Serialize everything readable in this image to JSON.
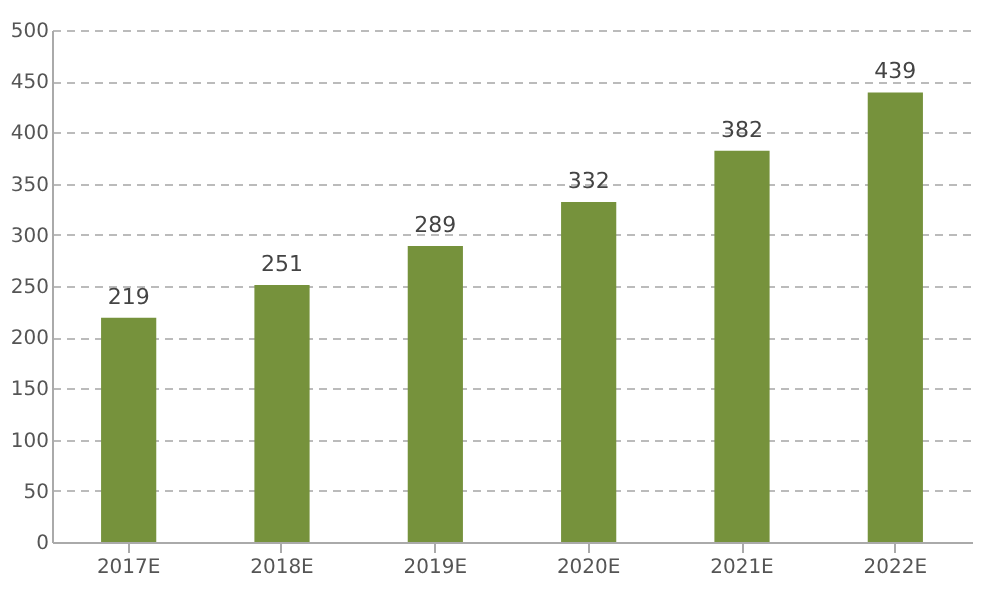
{
  "chart_data": {
    "type": "bar",
    "categories": [
      "2017E",
      "2018E",
      "2019E",
      "2020E",
      "2021E",
      "2022E"
    ],
    "values": [
      219,
      251,
      289,
      332,
      382,
      439
    ],
    "color": "#76923c",
    "ylim": [
      0,
      500
    ],
    "yticks": [
      0,
      50,
      100,
      150,
      200,
      250,
      300,
      350,
      400,
      450,
      500
    ],
    "grid": "y",
    "data_labels": true
  }
}
